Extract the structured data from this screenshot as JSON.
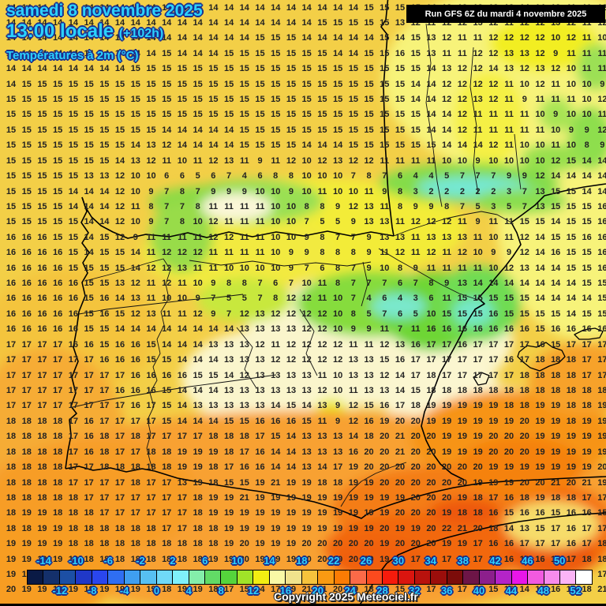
{
  "header": {
    "date_line": "samedi 8 novembre 2025",
    "time_line": "13:00 locale",
    "offset_label": "(+102h)",
    "variable_label": "Températures à 2m (°C)",
    "run_label": "Run GFS 6Z du mardi 4 novembre 2025"
  },
  "footer": {
    "copyright": "Copyright 2025 Meteociel.fr"
  },
  "colors": {
    "title_text": "#2bd2fe",
    "title_outline": "#1b2f8e",
    "number_text": "#222222",
    "run_box_bg": "#000000",
    "run_box_text": "#ffffff",
    "base_gold": "#f3cf47",
    "pale_yellow": "#f7f37a",
    "green": "#84dc48",
    "cyan_cold": "#74e8d4",
    "south_orange": "#f8a130",
    "deep_orange": "#f2680e"
  },
  "scale": {
    "unit": "°C",
    "colors": [
      "#0a1a45",
      "#14306b",
      "#1c4fa5",
      "#2038c8",
      "#2a46ee",
      "#2f6ef2",
      "#3f9ef0",
      "#57c0f2",
      "#70d9f8",
      "#7ff0fa",
      "#84eeaa",
      "#62db66",
      "#55d43c",
      "#a0e428",
      "#f2ee12",
      "#f9f9a6",
      "#f0e28c",
      "#f6c33c",
      "#fa9a12",
      "#fb7c04",
      "#fb6a48",
      "#fb4a1e",
      "#f61b0c",
      "#da150f",
      "#b9120d",
      "#9b0e0b",
      "#7c0c0a",
      "#6d1547",
      "#8c1f8c",
      "#b424c8",
      "#e816e8",
      "#f25ae0",
      "#f78cec",
      "#fbb4f6",
      "#ffffff"
    ],
    "top_labels": [
      "-14",
      "-10",
      "-6",
      "-2",
      "2",
      "6",
      "10",
      "14",
      "18",
      "22",
      "26",
      "30",
      "34",
      "38",
      "42",
      "46",
      "50"
    ],
    "bottom_labels": [
      "-12",
      "-8",
      "-4",
      "0",
      "4",
      "8",
      "12",
      "16",
      "20",
      "24",
      "28",
      "32",
      "36",
      "40",
      "44",
      "48",
      "52"
    ]
  },
  "temperature_grid": {
    "cols": 39,
    "rows_count": 39,
    "rows": [
      "14 14 14 14 14 14 14 14 14 14 14 14 14 14 14 14 14 14 14 14 14 14 14 15 15 15 15 14 12 12 12 12 12 14 14 12 11 11 12",
      "14 14 14 14 14 14 14 14 14 14 14 14 14 14 14 14 14 14 14 14 15 15 15 15 15 13 12 11 12 12 13 12 11 12 12 13 12 11 12",
      "14 14 14 14 14 14 14 14 14 14 14 14 14 14 14 14 15 15 15 14 14 14 14 14 15 14 15 13 12 11 11 12 12 12 12 10 12 11 10",
      "14 14 14 14 14 14 14 14 14 14 15 14 14 14 15 15 15 15 15 15 15 14 14 15 15 16 15 13 11 11 12 12 13 13 12 9 11 11 11",
      "14 14 14 14 14 14 14 14 15 15 15 15 15 15 15 15 15 15 15 15 15 15 15 15 15 15 15 14 13 12 12 14 13 12 13 12 10 11 11",
      "14 15 15 15 15 15 15 15 15 15 15 15 15 15 15 15 15 15 15 15 15 15 15 15 15 15 14 14 12 12 12 12 11 10 12 11 10 10 9",
      "15 15 15 15 15 15 15 15 15 15 15 15 15 15 15 15 15 15 15 15 15 15 15 15 15 15 14 14 12 12 13 12 11 9 11 11 11 10 12",
      "15 15 15 15 15 15 15 15 15 15 15 15 15 15 15 15 15 15 15 15 15 15 15 15 15 15 15 14 14 12 11 11 11 11 10 9 10 10 11",
      "15 15 15 15 15 15 15 15 15 15 14 14 14 14 14 15 15 15 15 15 15 15 15 15 15 15 15 14 14 12 11 11 11 11 11 10 9 9 12",
      "15 15 15 15 15 15 15 15 14 13 12 14 14 14 14 15 15 15 15 14 14 14 15 15 15 15 15 15 14 14 14 12 11 10 10 11 10 8 9",
      "15 15 15 15 15 15 15 14 13 12 11 10 11 12 13 11 9 11 12 10 12 13 12 12 11 11 11 11 10 10 9 10 10 10 10 12 15 14 14",
      "15 15 15 15 15 13 13 12 10 10 6 6 5 6 7 4 6 8 8 10 10 10 7 8 7 6 4 4 5 7 7 7 9 9 12 14 14 14 14",
      "15 15 15 15 14 14 14 12 10 9 7 8 7 9 9 9 10 10 9 10 11 10 10 11 9 8 3 2 2 2 2 2 3 7 13 15 15 14 14",
      "15 15 15 15 14 14 14 12 11 8 7 7 8 11 11 11 11 10 10 8 8 9 12 13 11 8 9 9 8 7 5 3 5 7 13 15 15 15 16",
      "15 15 15 15 15 14 14 12 10 9 7 8 10 12 11 11 11 10 10 7 5 5 9 13 13 11 12 12 12 11 9 11 11 15 15 14 15 15 16",
      "16 16 16 15 15 14 15 12 9 11 11 11 11 12 12 11 11 10 10 9 8 7 7 9 13 13 11 13 13 13 11 10 11 12 14 15 15 16 16",
      "16 16 16 16 15 14 15 15 14 11 12 12 12 11 11 11 11 10 9 9 8 8 8 9 11 12 11 12 11 12 10 9 9 12 14 16 15 15 16",
      "16 16 16 16 15 15 15 15 14 12 12 13 11 11 10 10 10 10 9 7 6 8 7 9 10 8 9 11 11 11 11 10 12 13 14 14 15 15 16",
      "16 16 16 16 16 15 15 13 12 11 12 11 10 9 8 8 7 6 7 10 11 8 7 7 7 6 7 8 9 13 14 14 14 14 14 14 14 15 15",
      "16 16 16 16 16 15 16 14 13 11 10 10 9 7 5 5 7 8 12 12 11 10 7 4 6 4 3 6 11 15 15 15 15 15 14 14 14 14 15",
      "16 16 16 16 16 15 16 15 12 13 11 11 12 9 7 12 13 12 12 12 12 10 8 5 7 6 5 10 15 15 15 16 15 15 15 15 14 15 15",
      "16 16 16 16 16 15 15 14 14 14 14 14 14 14 14 13 13 13 13 12 12 10 9 9 11 7 11 16 16 16 16 16 16 16 15 16 16 16 16",
      "17 17 17 17 16 16 15 16 16 15 14 14 14 13 13 13 12 11 12 12 12 12 11 11 12 13 16 17 17 16 17 17 17 17 16 15 17 17 17",
      "17 17 17 17 17 17 16 16 16 15 15 14 14 14 13 13 13 12 12 12 12 12 13 13 15 16 17 17 17 17 17 17 16 17 18 18 18 17 17",
      "17 17 17 17 17 17 17 17 16 16 16 16 15 15 14 12 13 13 13 13 11 10 13 13 12 14 17 18 17 17 17 17 17 18 18 18 18 17 17",
      "17 17 17 17 17 17 17 16 16 16 15 14 14 14 13 13 13 13 13 13 12 10 11 13 13 14 15 18 18 18 18 18 18 18 18 18 18 18 18",
      "17 17 17 17 17 17 17 17 16 17 15 14 13 13 13 13 13 14 15 14 13 9 12 15 16 17 18 19 19 19 19 19 18 18 19 19 18 18 19",
      "18 18 18 18 17 16 17 17 17 17 15 14 14 14 15 15 16 16 16 15 11 9 12 16 19 20 20 19 19 19 19 19 19 20 19 19 18 19 19",
      "18 18 18 18 17 16 18 17 18 17 17 17 17 18 18 18 17 15 14 13 13 13 14 18 20 21 20 20 19 19 19 20 20 20 19 19 19 19 19",
      "18 18 18 18 17 16 18 17 17 18 18 19 19 19 18 17 16 14 14 13 13 13 16 20 20 21 20 20 19 19 19 20 20 20 19 19 19 19 19",
      "18 18 18 18 17 17 18 18 18 18 18 19 19 18 17 16 16 14 14 13 14 17 19 20 20 20 20 20 20 20 20 19 19 19 19 19 19 19 20",
      "18 18 18 18 17 17 17 17 18 17 17 13 19 18 15 15 19 21 19 19 18 18 19 19 20 20 20 20 20 20 19 19 19 20 20 21 20 21 19",
      "18 18 18 18 18 17 17 17 17 17 17 17 18 19 19 21 19 19 19 19 19 19 19 19 19 19 20 20 20 19 18 17 16 18 19 18 18 17 17",
      "18 19 19 18 18 18 17 17 17 17 17 17 18 19 19 19 19 19 19 19 19 19 19 19 19 20 20 20 19 18 18 16 15 16 16 15 16 16 15",
      "18 18 19 19 18 18 18 18 18 18 17 17 18 18 19 19 19 19 19 19 19 19 19 19 20 19 19 20 22 21 20 18 14 13 15 17 16 17 17",
      "19 19 19 19 18 18 18 18 18 18 18 18 18 18 19 20 19 19 19 20 20 20 20 20 19 20 20 20 19 19 17 16 16 17 17 17 16 17 18",
      "19 19 19 19 18 18 18 18 18 18 18 18 18 19 19 20 19 19 19 20 20 20 20 20 19 19 17 16 17 17 17 17 16 16 16 17 17 18 18",
      "19 19 19 19 19 19 19 19 19 19 19 19 19 19 19 18 17 15 14 17 20 21 21 20 19 18 16 16 16 17 17 17 16 15 15 14 15 15 17",
      "20 19 19 19 19 19 19 19 19 19 18 19 19 18 17 15 14 17 19 21 21 20 19 18 16 15 16 17 17 17 16 15 15 14 15 16 18 18 21"
    ]
  }
}
